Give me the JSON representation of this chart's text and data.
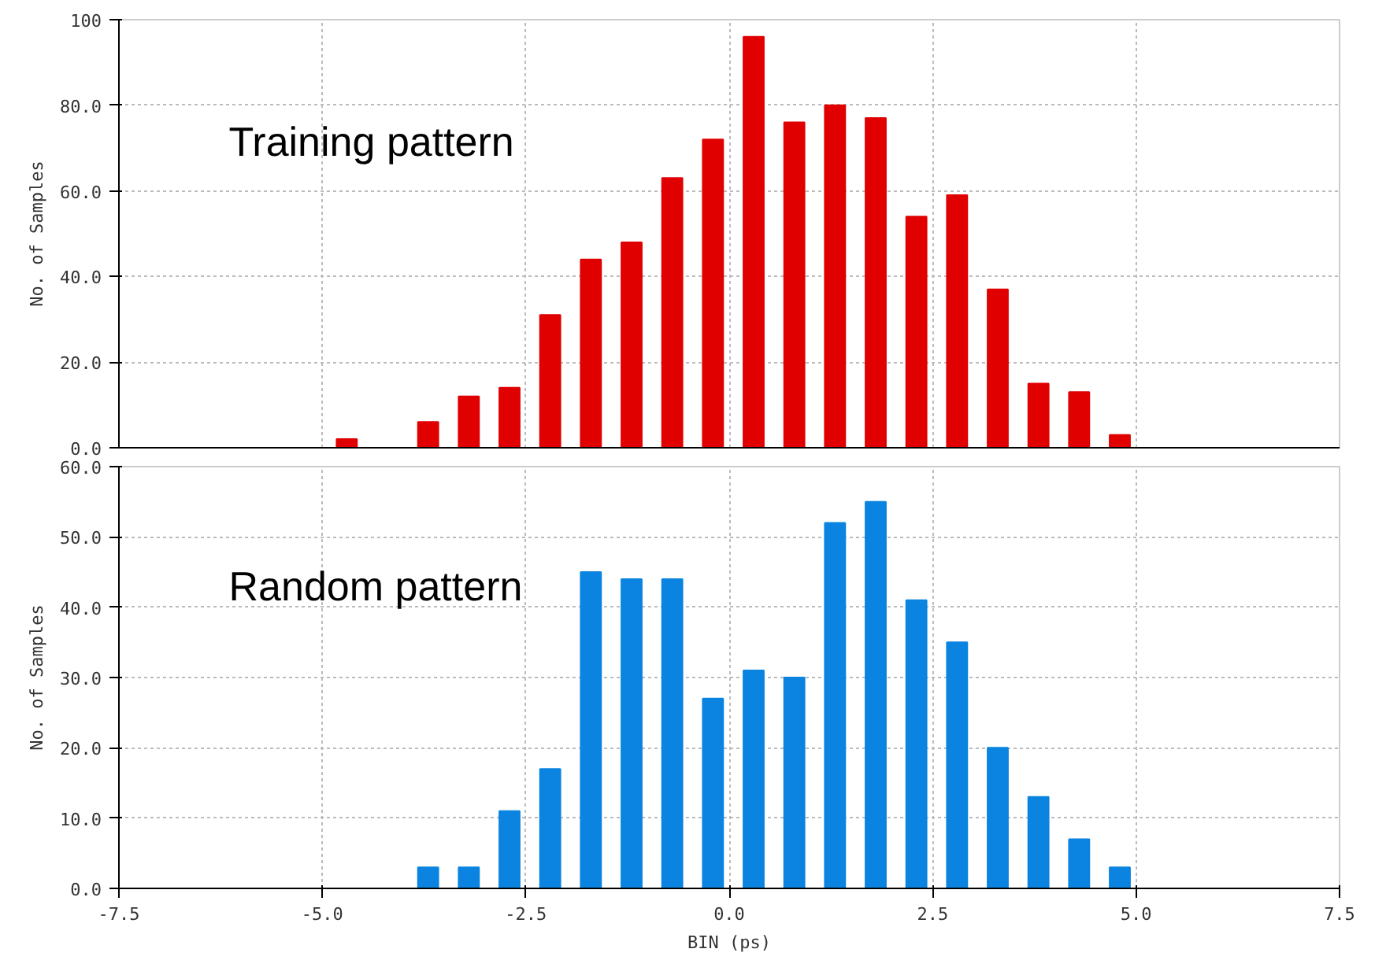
{
  "chart_data": [
    {
      "type": "bar",
      "x": [
        -4.7,
        -4.2,
        -3.7,
        -3.2,
        -2.7,
        -2.2,
        -1.7,
        -1.2,
        -0.7,
        -0.2,
        0.3,
        0.8,
        1.3,
        1.8,
        2.3,
        2.8,
        3.3,
        3.8,
        4.3,
        4.8
      ],
      "series": [
        {
          "color": "#e00000",
          "values": [
            2,
            0,
            6,
            12,
            14,
            31,
            44,
            48,
            63,
            72,
            96,
            76,
            80,
            77,
            54,
            59,
            37,
            15,
            13,
            3
          ]
        }
      ],
      "ylabel": "No. of Samples",
      "annotations": [
        "Training pattern"
      ],
      "xlim": [
        -7.5,
        7.5
      ],
      "xticks": [
        -7.5,
        -5.0,
        -2.5,
        0.0,
        2.5,
        5.0,
        7.5
      ],
      "ylim": [
        0,
        100
      ],
      "yticks": [
        {
          "value": 0,
          "label": "0.0"
        },
        {
          "value": 20,
          "label": "20.0"
        },
        {
          "value": 40,
          "label": "40.0"
        },
        {
          "value": 60,
          "label": "60.0"
        },
        {
          "value": 80,
          "label": "80.0"
        },
        100
      ],
      "grid": true,
      "tick_labels": "y"
    },
    {
      "type": "bar",
      "x": [
        -4.7,
        -4.2,
        -3.7,
        -3.2,
        -2.7,
        -2.2,
        -1.7,
        -1.2,
        -0.7,
        -0.2,
        0.3,
        0.8,
        1.3,
        1.8,
        2.3,
        2.8,
        3.3,
        3.8,
        4.3,
        4.8
      ],
      "series": [
        {
          "color": "#0a84e0",
          "values": [
            0,
            0,
            3,
            3,
            11,
            17,
            45,
            44,
            44,
            27,
            31,
            30,
            52,
            55,
            41,
            35,
            20,
            13,
            7,
            3
          ]
        }
      ],
      "xlabel": "BIN (ps)",
      "ylabel": "No. of Samples",
      "annotations": [
        "Random pattern"
      ],
      "xlim": [
        -7.5,
        7.5
      ],
      "xticks": [
        {
          "value": -7.5,
          "label": "-7.5"
        },
        {
          "value": -5.0,
          "label": "-5.0"
        },
        {
          "value": -2.5,
          "label": "-2.5"
        },
        {
          "value": 0.0,
          "label": "0.0"
        },
        2.5,
        {
          "value": 5.0,
          "label": "5.0"
        },
        7.5
      ],
      "ylim": [
        0,
        60
      ],
      "yticks": [
        {
          "value": 0,
          "label": "0.0"
        },
        {
          "value": 10,
          "label": "10.0"
        },
        {
          "value": 20,
          "label": "20.0"
        },
        {
          "value": 30,
          "label": "30.0"
        },
        {
          "value": 40,
          "label": "40.0"
        },
        {
          "value": 50,
          "label": "50.0"
        },
        {
          "value": 60,
          "label": "60.0"
        }
      ],
      "grid": true
    }
  ]
}
